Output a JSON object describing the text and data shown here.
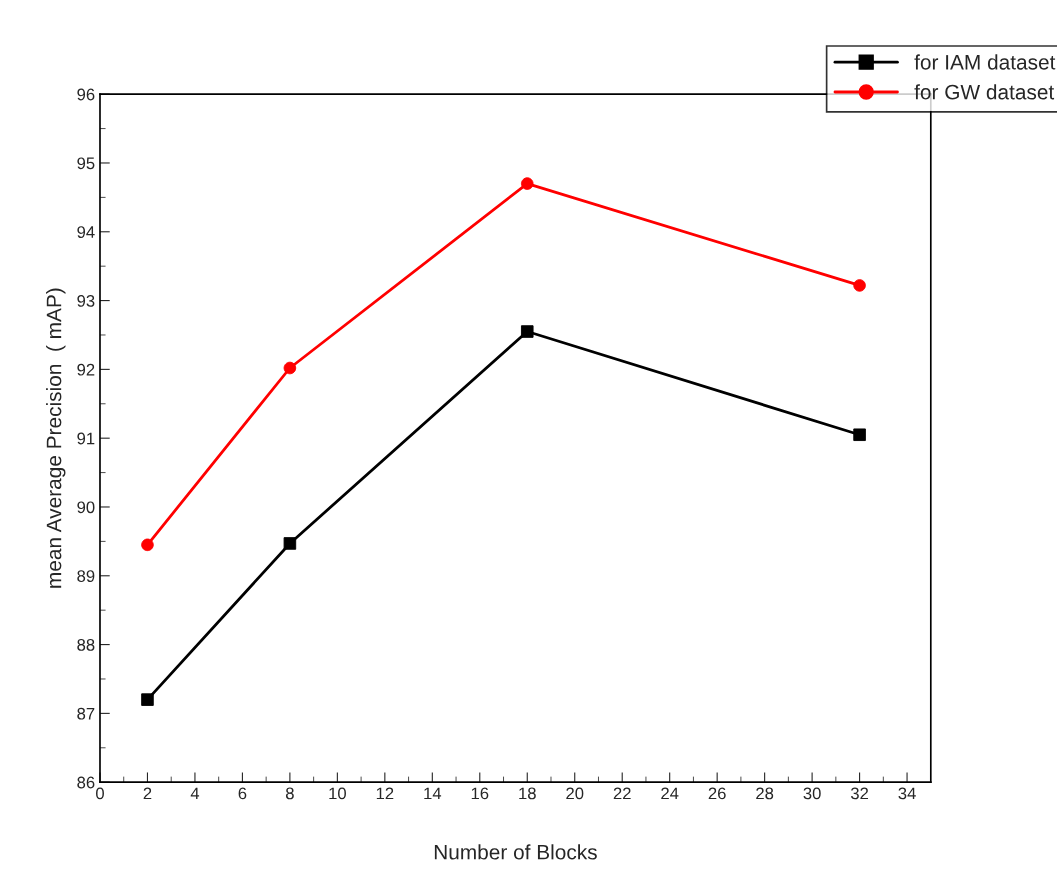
{
  "chart_data": {
    "type": "line",
    "xlabel": "Number of Blocks",
    "ylabel": "mean Average Precision  ( mAP)",
    "x": [
      2,
      8,
      18,
      32
    ],
    "series": [
      {
        "name": "for IAM dataset",
        "color": "#000000",
        "marker": "square",
        "values": [
          87.2,
          89.47,
          92.55,
          91.05
        ]
      },
      {
        "name": "for GW dataset",
        "color": "#ff0000",
        "marker": "circle",
        "values": [
          89.45,
          92.02,
          94.7,
          93.22
        ]
      }
    ],
    "xlim": [
      0,
      35
    ],
    "xticks": [
      0,
      2,
      4,
      6,
      8,
      10,
      12,
      14,
      16,
      18,
      20,
      22,
      24,
      26,
      28,
      30,
      32,
      34
    ],
    "ylim": [
      86,
      96
    ],
    "yticks": [
      86,
      87,
      88,
      89,
      90,
      91,
      92,
      93,
      94,
      95,
      96
    ],
    "legend": "top right",
    "grid": false,
    "line_style": "solid"
  }
}
